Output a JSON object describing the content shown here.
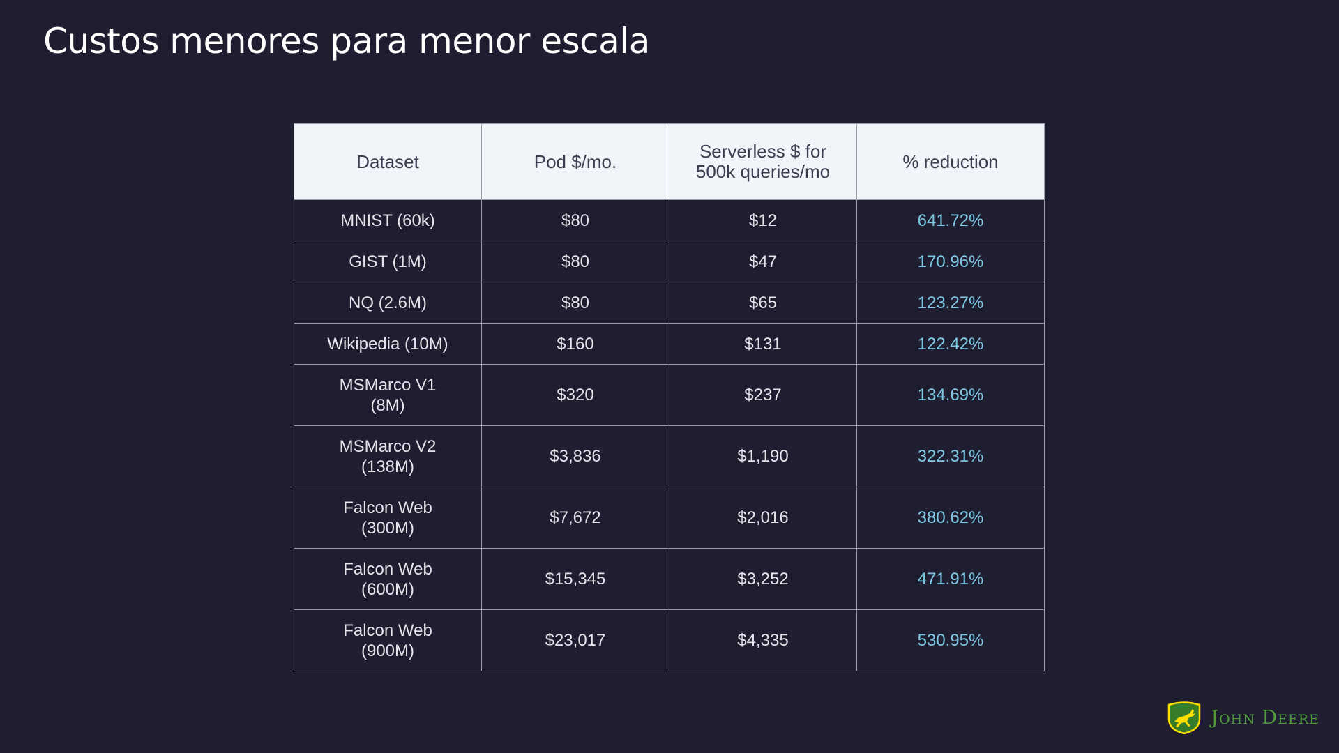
{
  "title": "Custos menores para menor escala",
  "table": {
    "headers": [
      "Dataset",
      "Pod $/mo.",
      "Serverless $ for\n500k queries/mo",
      "% reduction"
    ],
    "rows": [
      {
        "dataset": "MNIST (60k)",
        "pod": "$80",
        "serverless": "$12",
        "reduction": "641.72%"
      },
      {
        "dataset": "GIST (1M)",
        "pod": "$80",
        "serverless": "$47",
        "reduction": "170.96%"
      },
      {
        "dataset": "NQ (2.6M)",
        "pod": "$80",
        "serverless": "$65",
        "reduction": "123.27%"
      },
      {
        "dataset": "Wikipedia (10M)",
        "pod": "$160",
        "serverless": "$131",
        "reduction": "122.42%"
      },
      {
        "dataset": "MSMarco V1\n(8M)",
        "pod": "$320",
        "serverless": "$237",
        "reduction": "134.69%"
      },
      {
        "dataset": "MSMarco V2\n(138M)",
        "pod": "$3,836",
        "serverless": "$1,190",
        "reduction": "322.31%"
      },
      {
        "dataset": "Falcon Web\n(300M)",
        "pod": "$7,672",
        "serverless": "$2,016",
        "reduction": "380.62%"
      },
      {
        "dataset": "Falcon Web\n(600M)",
        "pod": "$15,345",
        "serverless": "$3,252",
        "reduction": "471.91%"
      },
      {
        "dataset": "Falcon Web\n(900M)",
        "pod": "$23,017",
        "serverless": "$4,335",
        "reduction": "530.95%"
      }
    ]
  },
  "logo": {
    "text": "John Deere",
    "icon": "leaping-deer-icon",
    "colors": {
      "green": "#367c2b",
      "yellow": "#ffde00"
    }
  },
  "colors": {
    "background": "#1e1e30",
    "header_background": "#f1f4f8",
    "reduction_text": "#7ec8e3"
  }
}
